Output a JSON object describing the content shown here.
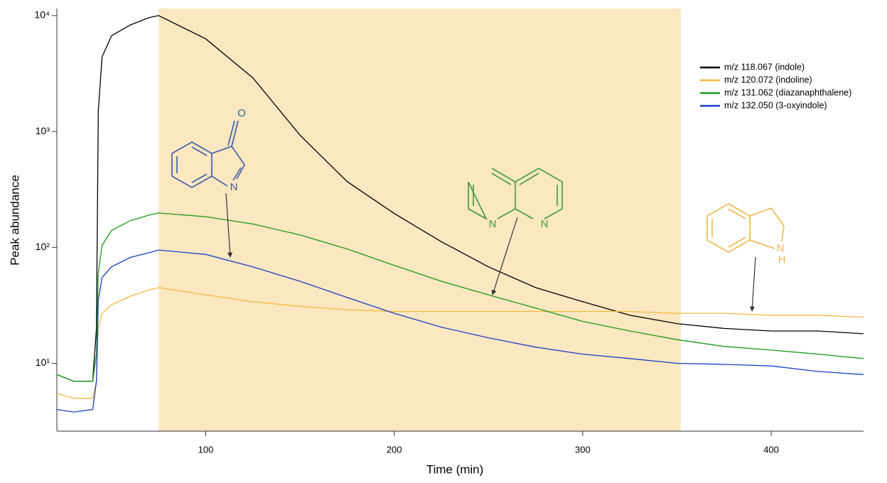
{
  "chart_data": {
    "type": "line",
    "x_label": "Time (min)",
    "y_label": "Peak abundance",
    "x": [
      21,
      30,
      40,
      42,
      43,
      45,
      50,
      60,
      70,
      75,
      100,
      125,
      150,
      175,
      200,
      225,
      250,
      275,
      300,
      325,
      350,
      375,
      400,
      425,
      449
    ],
    "series": [
      {
        "name": "m/z 118.067 (indole)",
        "color": "#000000",
        "values": [
          8,
          7,
          7,
          20,
          1500,
          4400,
          6700,
          8300,
          9600,
          10000,
          6300,
          2900,
          930,
          370,
          196,
          112,
          68,
          45,
          34,
          26,
          22,
          20,
          19,
          19,
          18
        ]
      },
      {
        "name": "m/z 120.072 (indoline)",
        "color": "#f5b942",
        "values": [
          5.5,
          5,
          5,
          7,
          20,
          27,
          32,
          38,
          43,
          45,
          39,
          34,
          31,
          29,
          28,
          28,
          28,
          28,
          28,
          28,
          27,
          27,
          26,
          26,
          25
        ]
      },
      {
        "name": "m/z 131.062 (diazanaphthalene)",
        "color": "#1a9a1a",
        "values": [
          8,
          7,
          7,
          12,
          60,
          104,
          140,
          170,
          190,
          198,
          184,
          159,
          128,
          97,
          70,
          51,
          39,
          30,
          23,
          19,
          16,
          14,
          13,
          12,
          11
        ]
      },
      {
        "name": "m/z 132.050 (3-oxyindole)",
        "color": "#1a3fc4",
        "values": [
          4,
          3.8,
          4,
          7,
          35,
          55,
          68,
          82,
          90,
          95,
          87,
          68,
          51,
          37,
          27,
          20.5,
          16.6,
          13.8,
          12,
          11,
          10,
          9.8,
          9.5,
          8.5,
          8
        ]
      }
    ],
    "xlim": [
      21,
      449
    ],
    "xticks": [
      100,
      200,
      300,
      400
    ],
    "ylim": [
      2.6,
      11500
    ],
    "log_y": true,
    "yticks": [
      {
        "value": 10,
        "label": "10¹"
      },
      {
        "value": 100,
        "label": "10²"
      },
      {
        "value": 1000,
        "label": "10³"
      },
      {
        "value": 10000,
        "label": "10⁴"
      }
    ],
    "highlight": [
      75,
      352
    ],
    "highlight_color": "#fbe7c0",
    "legend": "upper right",
    "structure_atoms": [
      [
        "O",
        "N"
      ],
      [
        "N",
        "N"
      ],
      [
        "N",
        "H"
      ]
    ]
  }
}
